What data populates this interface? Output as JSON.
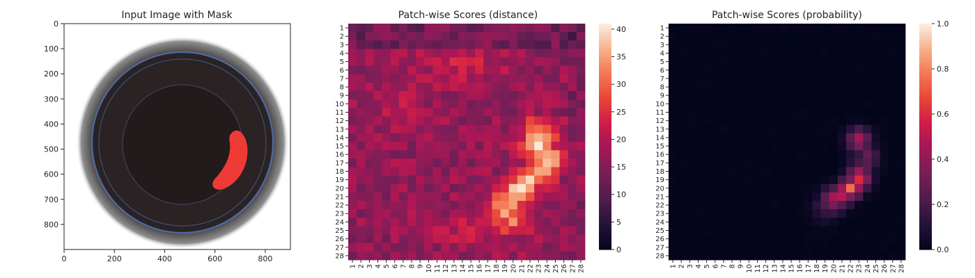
{
  "chart_data": [
    {
      "type": "image",
      "title": "Input Image with Mask",
      "xlim": [
        0,
        900
      ],
      "ylim": [
        900,
        0
      ],
      "xticks": [
        0,
        200,
        400,
        600,
        800
      ],
      "yticks": [
        0,
        100,
        200,
        300,
        400,
        500,
        600,
        700,
        800
      ],
      "image_description_icon": "jar-top-view-with-red-mask",
      "mask_color": "#ef3b36",
      "mask_region": {
        "x_range": [
          585,
          725
        ],
        "y_range": [
          420,
          660
        ]
      }
    },
    {
      "type": "heatmap",
      "title": "Patch-wise Scores (distance)",
      "rows": 28,
      "cols": 28,
      "xtick_labels": [
        "1",
        "2",
        "3",
        "4",
        "5",
        "6",
        "7",
        "8",
        "9",
        "10",
        "11",
        "12",
        "13",
        "14",
        "15",
        "16",
        "17",
        "18",
        "19",
        "20",
        "21",
        "22",
        "23",
        "24",
        "25",
        "26",
        "27",
        "28"
      ],
      "ytick_labels": [
        "1",
        "2",
        "3",
        "4",
        "5",
        "6",
        "7",
        "8",
        "9",
        "10",
        "11",
        "12",
        "13",
        "14",
        "15",
        "16",
        "17",
        "18",
        "19",
        "20",
        "21",
        "22",
        "23",
        "24",
        "25",
        "26",
        "27",
        "28"
      ],
      "colorbar": {
        "min": 0,
        "max": 41,
        "ticks": [
          0,
          5,
          10,
          15,
          20,
          25,
          30,
          35,
          40
        ],
        "colormap": "rocket"
      },
      "hot_region_cells": [
        [
          13,
          23,
          34
        ],
        [
          14,
          23,
          36
        ],
        [
          15,
          23,
          37
        ],
        [
          16,
          24,
          36
        ],
        [
          17,
          24,
          36
        ],
        [
          18,
          23,
          37
        ],
        [
          19,
          22,
          38
        ],
        [
          20,
          21,
          40
        ],
        [
          21,
          20,
          39
        ],
        [
          22,
          19,
          35
        ],
        [
          23,
          19,
          32
        ],
        [
          24,
          20,
          30
        ]
      ],
      "value_range_estimate": [
        5,
        41
      ]
    },
    {
      "type": "heatmap",
      "title": "Patch-wise Scores (probability)",
      "rows": 28,
      "cols": 28,
      "xtick_labels": [
        "1",
        "2",
        "3",
        "4",
        "5",
        "6",
        "7",
        "8",
        "9",
        "10",
        "11",
        "12",
        "13",
        "14",
        "15",
        "16",
        "17",
        "18",
        "19",
        "20",
        "21",
        "22",
        "23",
        "24",
        "25",
        "26",
        "27",
        "28"
      ],
      "ytick_labels": [
        "1",
        "2",
        "3",
        "4",
        "5",
        "6",
        "7",
        "8",
        "9",
        "10",
        "11",
        "12",
        "13",
        "14",
        "15",
        "16",
        "17",
        "18",
        "19",
        "20",
        "21",
        "22",
        "23",
        "24",
        "25",
        "26",
        "27",
        "28"
      ],
      "colorbar": {
        "min": 0.0,
        "max": 1.0,
        "ticks": [
          "0.0",
          "0.2",
          "0.4",
          "0.6",
          "0.8",
          "1.0"
        ],
        "colormap": "rocket"
      },
      "peak_cells": [
        [
          20,
          22,
          0.75
        ],
        [
          19,
          23,
          0.6
        ],
        [
          14,
          23,
          0.45
        ],
        [
          21,
          20,
          0.45
        ]
      ],
      "value_range_estimate": [
        0.0,
        0.75
      ]
    }
  ]
}
